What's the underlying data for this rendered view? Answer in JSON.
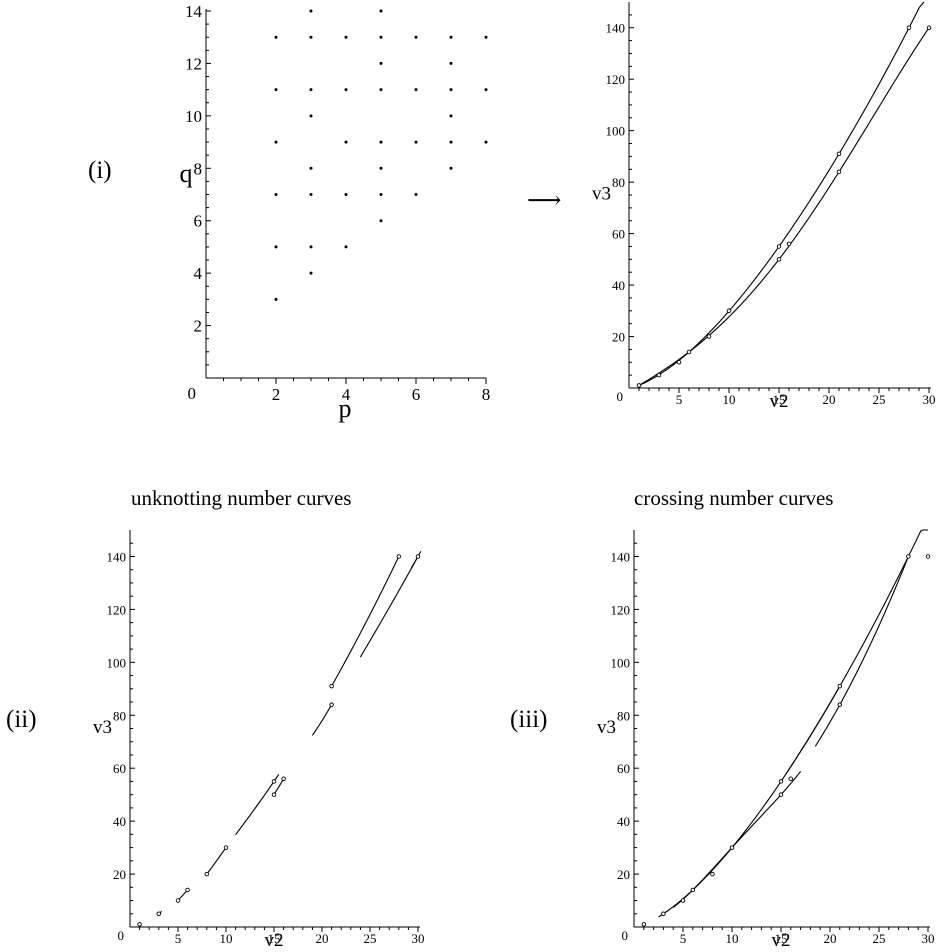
{
  "panel_labels": {
    "i": "(i)",
    "ii": "(ii)",
    "iii": "(iii)"
  },
  "arrow": "⟶",
  "titles": {
    "ii": "unknotting number curves",
    "iii": "crossing number curves"
  },
  "chart_data": [
    {
      "id": "pq_grid",
      "type": "scatter",
      "xlabel": "p",
      "ylabel": "q",
      "xlim": [
        0,
        8
      ],
      "ylim": [
        0,
        14
      ],
      "xticks": [
        2,
        4,
        6,
        8
      ],
      "yticks": [
        2,
        4,
        6,
        8,
        10,
        12,
        14
      ],
      "x_origin_label": "0",
      "points": [
        [
          2,
          3
        ],
        [
          2,
          5
        ],
        [
          2,
          7
        ],
        [
          2,
          9
        ],
        [
          2,
          11
        ],
        [
          2,
          13
        ],
        [
          3,
          4
        ],
        [
          3,
          5
        ],
        [
          3,
          7
        ],
        [
          3,
          8
        ],
        [
          3,
          10
        ],
        [
          3,
          11
        ],
        [
          3,
          13
        ],
        [
          3,
          14
        ],
        [
          4,
          5
        ],
        [
          4,
          7
        ],
        [
          4,
          9
        ],
        [
          4,
          11
        ],
        [
          4,
          13
        ],
        [
          5,
          6
        ],
        [
          5,
          7
        ],
        [
          5,
          8
        ],
        [
          5,
          9
        ],
        [
          5,
          11
        ],
        [
          5,
          12
        ],
        [
          5,
          13
        ],
        [
          5,
          14
        ],
        [
          6,
          7
        ],
        [
          6,
          9
        ],
        [
          6,
          11
        ],
        [
          6,
          13
        ],
        [
          7,
          8
        ],
        [
          7,
          9
        ],
        [
          7,
          10
        ],
        [
          7,
          11
        ],
        [
          7,
          12
        ],
        [
          7,
          13
        ],
        [
          8,
          9
        ],
        [
          8,
          11
        ],
        [
          8,
          13
        ]
      ]
    },
    {
      "id": "v2v3_a",
      "type": "line",
      "xlabel": "v2",
      "ylabel": "v3",
      "xlim": [
        0,
        30
      ],
      "ylim": [
        0,
        150
      ],
      "xticks": [
        5,
        10,
        15,
        20,
        25,
        30
      ],
      "yticks": [
        20,
        40,
        60,
        80,
        100,
        120,
        140
      ],
      "origin_label": "0",
      "points": [
        [
          1,
          1
        ],
        [
          3,
          5
        ],
        [
          5,
          10
        ],
        [
          6,
          14
        ],
        [
          8,
          20
        ],
        [
          10,
          30
        ],
        [
          15,
          50
        ],
        [
          15,
          55
        ],
        [
          16,
          56
        ],
        [
          21,
          84
        ],
        [
          21,
          91
        ],
        [
          28,
          140
        ],
        [
          30,
          140
        ]
      ],
      "curves": [
        {
          "from": 1,
          "to": 29.5,
          "pts": [
            [
              1,
              1
            ],
            [
              6,
              14
            ],
            [
              15,
              55
            ],
            [
              21,
              91
            ],
            [
              28,
              140
            ]
          ]
        },
        {
          "from": 1,
          "to": 30,
          "pts": [
            [
              1,
              1
            ],
            [
              6,
              14
            ],
            [
              15,
              50
            ],
            [
              21,
              84
            ],
            [
              30,
              140
            ]
          ]
        }
      ]
    },
    {
      "id": "v2v3_b",
      "type": "line",
      "xlabel": "v2",
      "ylabel": "v3",
      "xlim": [
        0,
        30
      ],
      "ylim": [
        0,
        150
      ],
      "xticks": [
        5,
        10,
        15,
        20,
        25,
        30
      ],
      "yticks": [
        20,
        40,
        60,
        80,
        100,
        120,
        140
      ],
      "origin_label": "0",
      "points": [
        [
          1,
          1
        ],
        [
          3,
          5
        ],
        [
          5,
          10
        ],
        [
          6,
          14
        ],
        [
          8,
          20
        ],
        [
          10,
          30
        ],
        [
          15,
          50
        ],
        [
          15,
          55
        ],
        [
          16,
          56
        ],
        [
          21,
          84
        ],
        [
          21,
          91
        ],
        [
          28,
          140
        ],
        [
          30,
          140
        ]
      ],
      "curves": [
        {
          "from": 2.8,
          "to": 3.3,
          "pts": [
            [
              1,
              1
            ],
            [
              6,
              14
            ],
            [
              15,
              55
            ],
            [
              21,
              91
            ],
            [
              28,
              140
            ]
          ]
        },
        {
          "from": 5,
          "to": 6,
          "pts": [
            [
              5,
              10
            ],
            [
              6,
              14
            ],
            [
              10,
              30
            ],
            [
              15,
              55
            ],
            [
              21,
              91
            ]
          ]
        },
        {
          "from": 8,
          "to": 10,
          "pts": [
            [
              5,
              10
            ],
            [
              8,
              20
            ],
            [
              10,
              30
            ],
            [
              16,
              56
            ],
            [
              21,
              91
            ]
          ]
        },
        {
          "from": 11,
          "to": 15.5,
          "pts": [
            [
              8,
              20
            ],
            [
              10,
              30
            ],
            [
              15,
              55
            ],
            [
              21,
              91
            ],
            [
              28,
              140
            ]
          ]
        },
        {
          "from": 15,
          "to": 16,
          "pts": [
            [
              10,
              30
            ],
            [
              15,
              50
            ],
            [
              16,
              56
            ],
            [
              21,
              91
            ]
          ]
        },
        {
          "from": 19,
          "to": 21,
          "pts": [
            [
              15,
              55
            ],
            [
              21,
              84
            ],
            [
              28,
              140
            ]
          ]
        },
        {
          "from": 21,
          "to": 28,
          "pts": [
            [
              15,
              55
            ],
            [
              21,
              91
            ],
            [
              28,
              140
            ]
          ]
        },
        {
          "from": 24,
          "to": 30.3,
          "pts": [
            [
              15,
              50
            ],
            [
              21,
              84
            ],
            [
              30,
              140
            ]
          ]
        },
        {
          "from": 29.3,
          "to": 30.1,
          "pts": [
            [
              21,
              84
            ],
            [
              30,
              140
            ]
          ]
        }
      ]
    },
    {
      "id": "v2v3_c",
      "type": "line",
      "xlabel": "v2",
      "ylabel": "v3",
      "xlim": [
        0,
        30
      ],
      "ylim": [
        0,
        150
      ],
      "xticks": [
        5,
        10,
        15,
        20,
        25,
        30
      ],
      "yticks": [
        20,
        40,
        60,
        80,
        100,
        120,
        140
      ],
      "origin_label": "0",
      "points": [
        [
          1,
          1
        ],
        [
          3,
          5
        ],
        [
          5,
          10
        ],
        [
          6,
          14
        ],
        [
          8,
          20
        ],
        [
          10,
          30
        ],
        [
          15,
          50
        ],
        [
          15,
          55
        ],
        [
          16,
          56
        ],
        [
          21,
          84
        ],
        [
          21,
          91
        ],
        [
          28,
          140
        ],
        [
          30,
          140
        ]
      ],
      "curves": [
        {
          "from": 2.5,
          "to": 21,
          "pts": [
            [
              3,
              5
            ],
            [
              6,
              14
            ],
            [
              10,
              30
            ],
            [
              15,
              55
            ],
            [
              21,
              91
            ]
          ]
        },
        {
          "from": 4,
          "to": 17,
          "pts": [
            [
              3,
              5
            ],
            [
              6,
              14
            ],
            [
              10,
              30
            ],
            [
              15,
              50
            ],
            [
              21,
              84
            ]
          ]
        },
        {
          "from": 15.5,
          "to": 30,
          "pts": [
            [
              15,
              55
            ],
            [
              21,
              91
            ],
            [
              28,
              140
            ]
          ]
        },
        {
          "from": 18.5,
          "to": 28,
          "pts": [
            [
              15,
              50
            ],
            [
              21,
              84
            ],
            [
              28,
              140
            ]
          ]
        }
      ]
    }
  ]
}
